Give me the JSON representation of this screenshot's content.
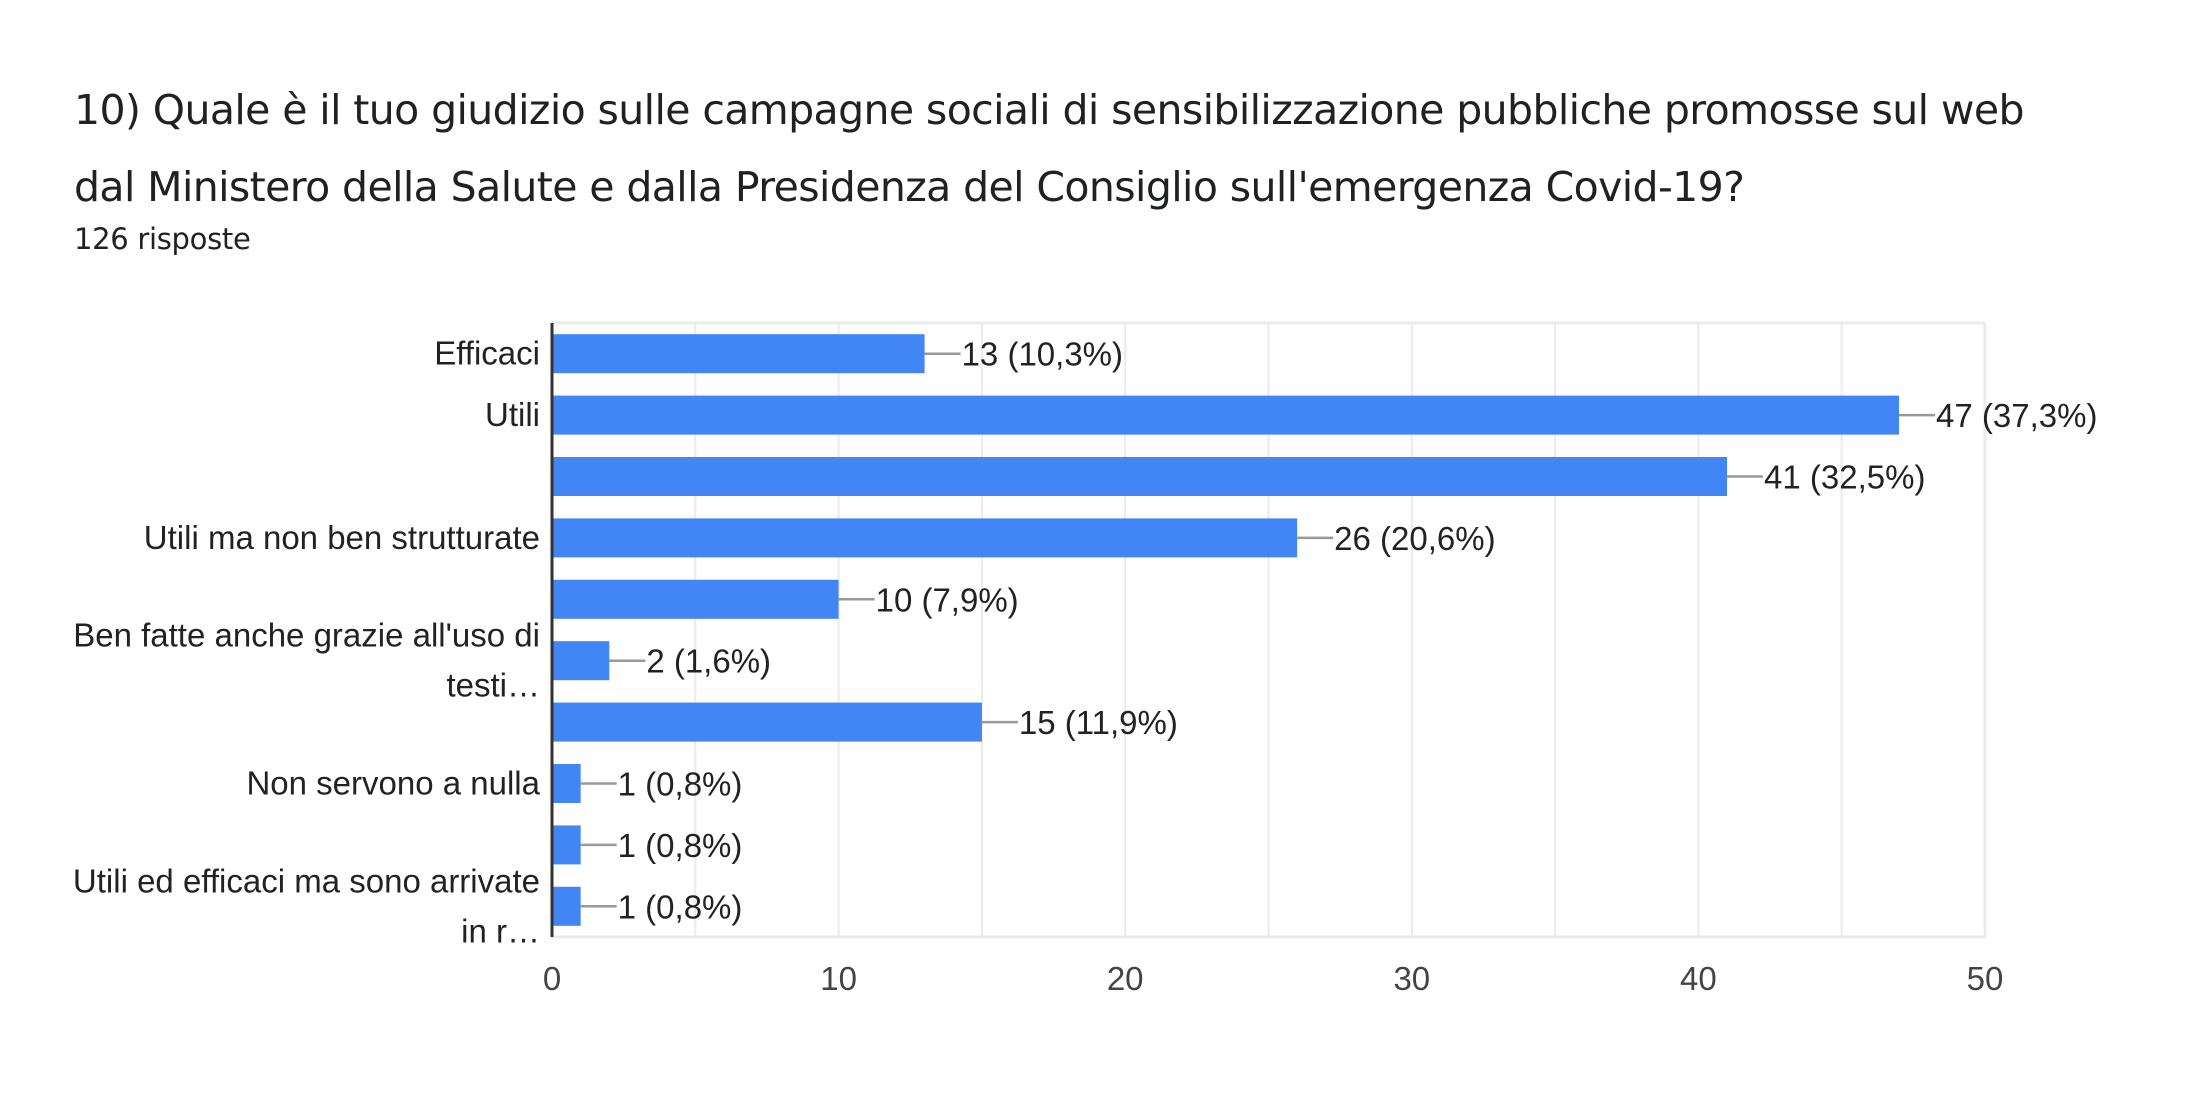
{
  "header": {
    "title_lines": [
      "10) Quale è il tuo giudizio sulle campagne sociali di sensibilizzazione pubbliche promosse sul web",
      "dal Ministero della Salute e dalla Presidenza del  Consiglio sull'emergenza Covid-19?"
    ],
    "response_count": "126 risposte"
  },
  "colors": {
    "bar": "#4285F4",
    "axis": "#333333",
    "grid": "#EBEBEB",
    "leader": "#999999"
  },
  "chart_data": {
    "type": "bar",
    "orientation": "horizontal",
    "title": "10) Quale è il tuo giudizio sulle campagne sociali di sensibilizzazione pubbliche promosse sul web dal Ministero della Salute e dalla Presidenza del  Consiglio sull'emergenza Covid-19?",
    "subtitle": "126 risposte",
    "xlabel": "",
    "ylabel": "",
    "xlim": [
      0,
      50
    ],
    "x_ticks": [
      0,
      10,
      20,
      30,
      40,
      50
    ],
    "minor_grid_step": 5,
    "grid": true,
    "legend": "none",
    "categories": [
      {
        "lines": [
          "Efficaci"
        ]
      },
      {
        "lines": [
          "Utili"
        ]
      },
      {
        "lines": []
      },
      {
        "lines": [
          "Utili ma non ben strutturate"
        ]
      },
      {
        "lines": []
      },
      {
        "lines": [
          "Ben fatte anche grazie all'uso di",
          "testi…"
        ]
      },
      {
        "lines": []
      },
      {
        "lines": [
          "Non servono a nulla"
        ]
      },
      {
        "lines": []
      },
      {
        "lines": [
          "Utili ed efficaci ma sono arrivate",
          "in r…"
        ]
      }
    ],
    "values": [
      13,
      47,
      41,
      26,
      10,
      2,
      15,
      1,
      1,
      1
    ],
    "data_labels": [
      "13 (10,3%)",
      "47 (37,3%)",
      "41 (32,5%)",
      "26 (20,6%)",
      "10 (7,9%)",
      "2 (1,6%)",
      "15 (11,9%)",
      "1 (0,8%)",
      "1 (0,8%)",
      "1 (0,8%)"
    ]
  }
}
